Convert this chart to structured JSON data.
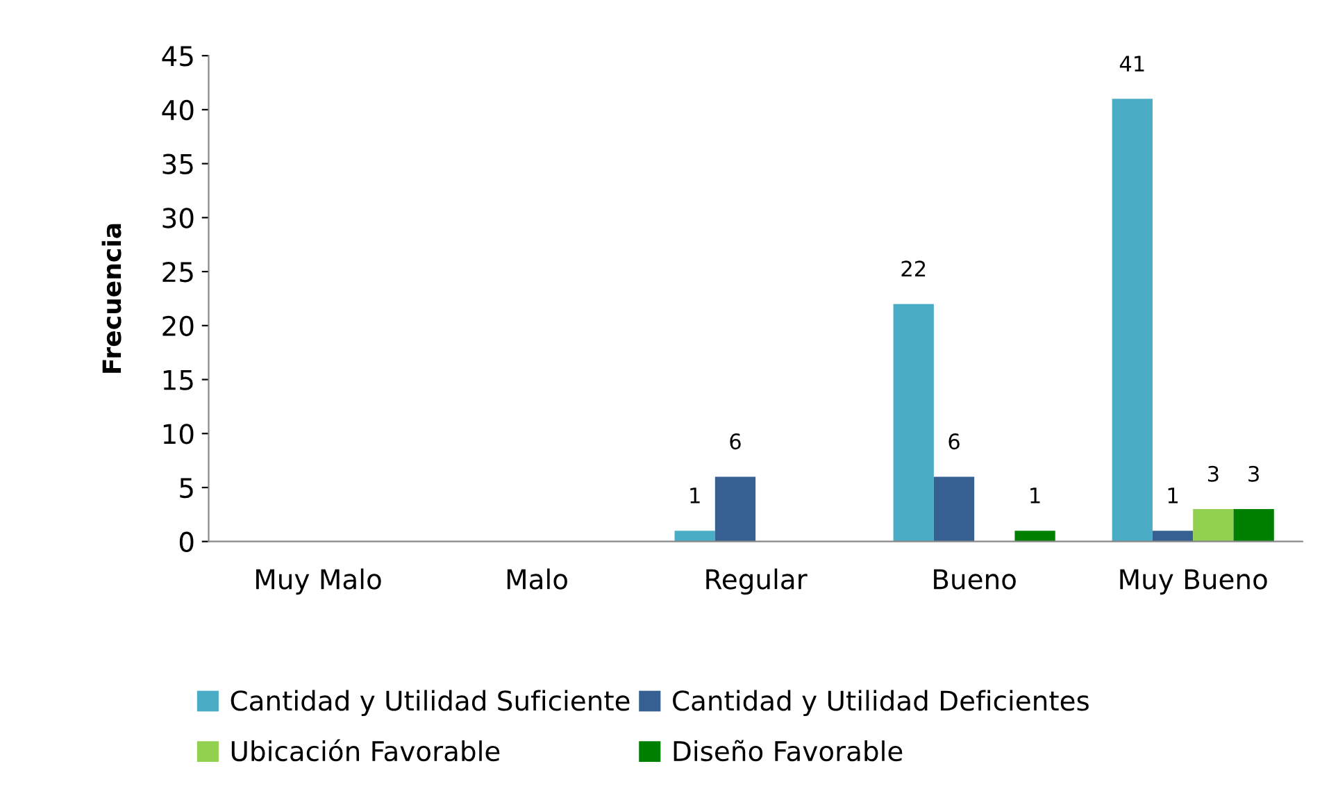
{
  "chart_data": {
    "type": "bar",
    "ylabel": "Frecuencia",
    "categories": [
      "Muy Malo",
      "Malo",
      "Regular",
      "Bueno",
      "Muy Bueno"
    ],
    "series": [
      {
        "name": "Cantidad y Utilidad Suficiente",
        "color": "#4bacc6",
        "values": [
          0,
          0,
          1,
          22,
          41
        ],
        "value_labels": [
          null,
          null,
          "1",
          "22",
          "41"
        ]
      },
      {
        "name": "Cantidad y Utilidad Deficientes",
        "color": "#376092",
        "values": [
          0,
          0,
          6,
          6,
          1
        ],
        "value_labels": [
          null,
          null,
          "6",
          "6",
          "1"
        ]
      },
      {
        "name": "Ubicación Favorable",
        "color": "#92d050",
        "values": [
          0,
          0,
          0,
          0,
          3
        ],
        "value_labels": [
          null,
          null,
          null,
          null,
          "3"
        ]
      },
      {
        "name": "Diseño Favorable",
        "color": "#008000",
        "values": [
          0,
          0,
          0,
          1,
          3
        ],
        "value_labels": [
          null,
          null,
          null,
          "1",
          "3"
        ]
      }
    ],
    "ylim": [
      0,
      45
    ],
    "yticks": [
      0,
      5,
      10,
      15,
      20,
      25,
      30,
      35,
      40,
      45
    ],
    "grid": false,
    "legend": "bottom"
  }
}
